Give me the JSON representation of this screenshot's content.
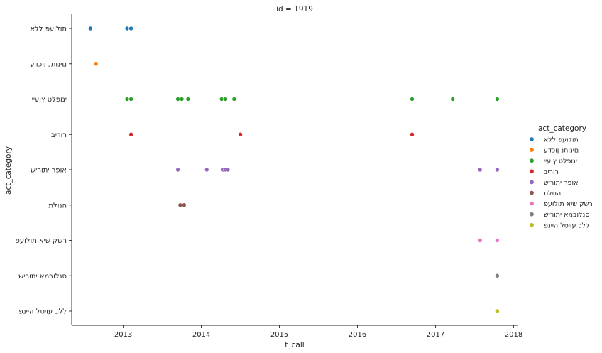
{
  "chart_data": {
    "type": "scatter",
    "title": "id = 1919",
    "xlabel": "t_call",
    "ylabel": "act_category",
    "xlim": [
      2012.34,
      2018.05
    ],
    "xticks": [
      "2013",
      "2014",
      "2015",
      "2016",
      "2017",
      "2018"
    ],
    "xtick_values": [
      2013,
      2014,
      2015,
      2016,
      2017,
      2018
    ],
    "categories": [
      "תולועפ ללא",
      "םינותנ ןוכדע",
      "ינופלט ץועיי",
      "רוריב",
      "אופר יתוריש",
      "הנולת",
      "רשק שיא תולועפ",
      "סנלובמא יתוריש",
      "ללכ עויסל היינפ"
    ],
    "legend": {
      "title": "act_category",
      "placement": "right"
    },
    "grid": false,
    "series": [
      {
        "name": "תולועפ ללא",
        "color": "#1f77b4",
        "category_index": 0,
        "x": [
          2012.58,
          2013.05,
          2013.1
        ]
      },
      {
        "name": "םינותנ ןוכדע",
        "color": "#ff7f0e",
        "category_index": 1,
        "x": [
          2012.65
        ]
      },
      {
        "name": "ינופלט ץועיי",
        "color": "#2ca02c",
        "category_index": 2,
        "x": [
          2013.05,
          2013.1,
          2013.7,
          2013.75,
          2013.83,
          2014.26,
          2014.31,
          2014.42,
          2016.7,
          2017.22,
          2017.79
        ]
      },
      {
        "name": "רוריב",
        "color": "#d62728",
        "category_index": 3,
        "x": [
          2013.1,
          2014.5,
          2016.7
        ]
      },
      {
        "name": "אופר יתוריש",
        "color": "#9467bd",
        "category_index": 4,
        "x": [
          2013.7,
          2014.07,
          2014.28,
          2014.31,
          2014.34,
          2017.57,
          2017.79
        ]
      },
      {
        "name": "הנולת",
        "color": "#8c564b",
        "category_index": 5,
        "x": [
          2013.73,
          2013.78
        ]
      },
      {
        "name": "רשק שיא תולועפ",
        "color": "#e377c2",
        "category_index": 6,
        "x": [
          2017.57,
          2017.79
        ]
      },
      {
        "name": "סנלובמא יתוריש",
        "color": "#7f7f7f",
        "category_index": 7,
        "x": [
          2017.79
        ]
      },
      {
        "name": "ללכ עויסל היינפ",
        "color": "#bcbd22",
        "category_index": 8,
        "x": [
          2017.79
        ]
      }
    ]
  }
}
